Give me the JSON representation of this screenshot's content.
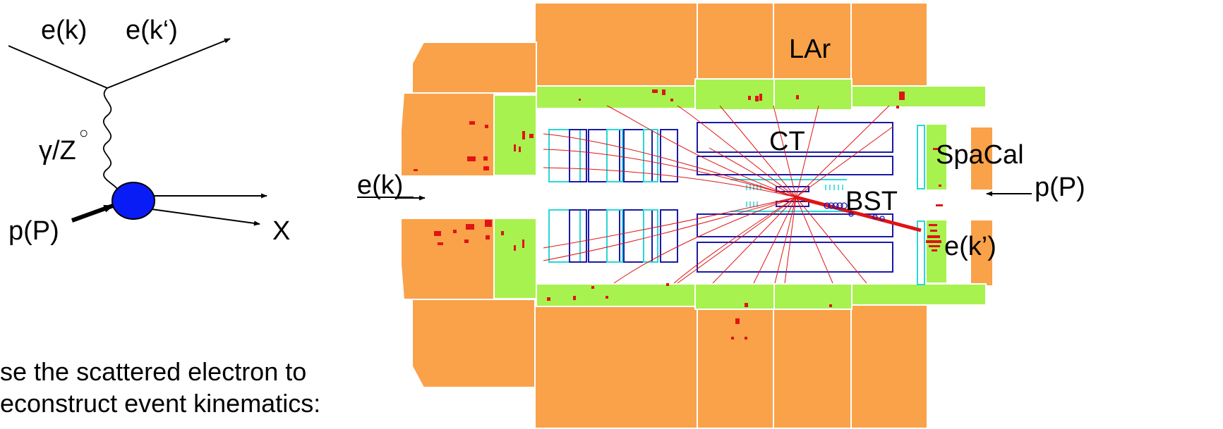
{
  "feynman": {
    "incoming_electron": "e(k)",
    "outgoing_electron": "e(k‘)",
    "boson": "γ/Z",
    "boson_superscript": "○",
    "proton": "p(P)",
    "final_state": "X"
  },
  "detector": {
    "lar": "LAr",
    "ct": "CT",
    "spacal": "SpaCal",
    "bst": "BST",
    "beam_electron": "e(k)",
    "beam_proton": "p(P)",
    "scattered_electron": "e(k’)"
  },
  "caption": {
    "line1": "se the scattered electron to",
    "line2": "econstruct event kinematics:"
  },
  "colors": {
    "calorimeter": "#f9a24a",
    "inner_cal": "#a8f24f",
    "chamber": "#1a1aa8",
    "tracker": "#29d7d7",
    "track": "#e01414",
    "proton_blob": "#0a1cf5",
    "arrow": "#000000"
  }
}
